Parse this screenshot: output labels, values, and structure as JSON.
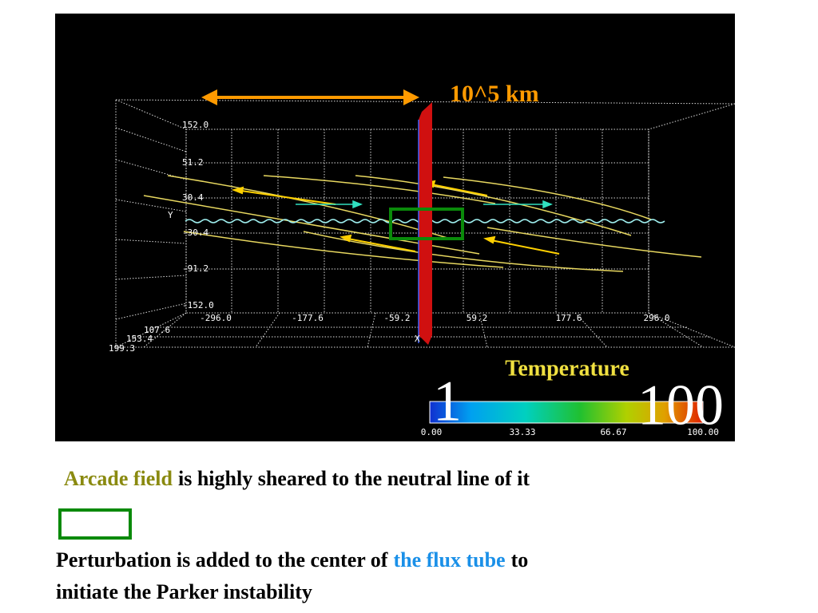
{
  "figure": {
    "scale_label": "10^5 km",
    "y_axis": "Y",
    "x_axis": "X",
    "y_ticks": [
      "152.0",
      "51.2",
      "30.4",
      "-30.4",
      "-91.2",
      "-152.0"
    ],
    "x_ticks": [
      "-296.0",
      "-177.6",
      "-59.2",
      "59.2",
      "177.6",
      "296.0"
    ],
    "z_ticks": [
      "107.6",
      "153.4",
      "199.3"
    ],
    "colorbar": {
      "title": "Temperature",
      "ticks": [
        "0.00",
        "33.33",
        "66.67",
        "100.00"
      ],
      "overlay_min": "1",
      "overlay_max": "100"
    }
  },
  "captions": {
    "line1": {
      "highlight": "Arcade field",
      "rest": "is highly sheared to the neutral line of it"
    },
    "line2": {
      "before": "Perturbation is added to the center of",
      "highlight": "the flux tube",
      "after": "to",
      "continued": "initiate the Parker instability"
    }
  }
}
